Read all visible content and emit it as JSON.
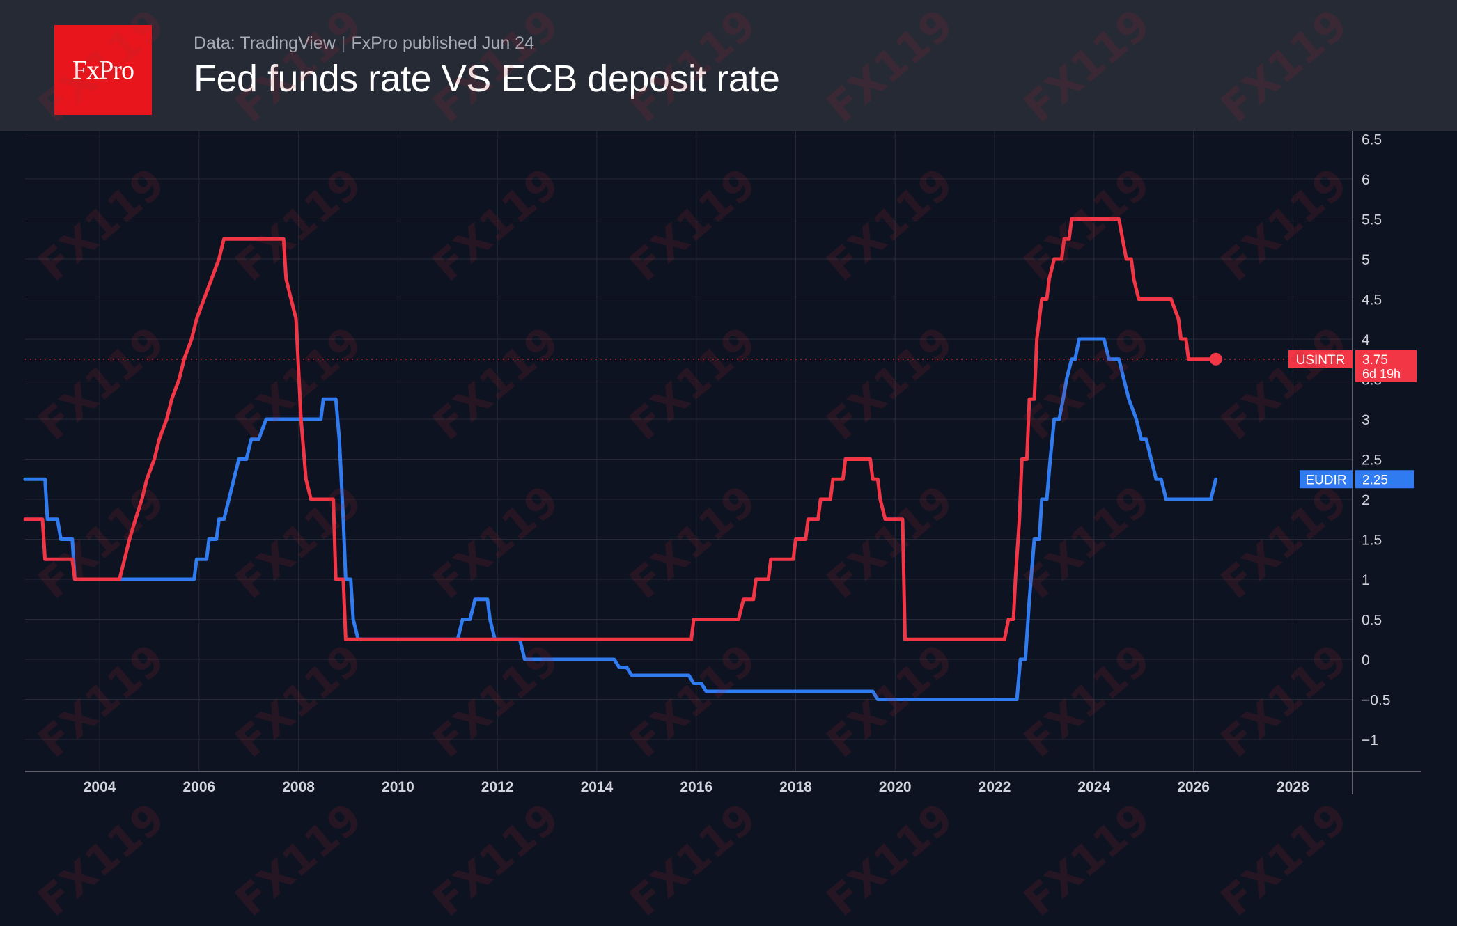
{
  "header": {
    "logo_text": "FxPro",
    "source": "Data: TradingView",
    "published": "FxPro published Jun 24",
    "title": "Fed funds rate VS ECB deposit rate"
  },
  "watermark": "FX119",
  "colors": {
    "background": "#0e1321",
    "header_bg": "#262a35",
    "logo_bg": "#e8161c",
    "fed": "#f23645",
    "ecb": "#2f7bef",
    "grid": "#252a36",
    "axis_text": "#d1d4dc"
  },
  "chart_data": {
    "type": "line",
    "xlim": [
      2002.5,
      2029.2
    ],
    "ylim": [
      -1.4,
      6.6
    ],
    "x_ticks": [
      "2004",
      "2006",
      "2008",
      "2010",
      "2012",
      "2014",
      "2016",
      "2018",
      "2020",
      "2022",
      "2024",
      "2026",
      "2028"
    ],
    "y_ticks": [
      "6.5",
      "6",
      "5.5",
      "5",
      "4.5",
      "4",
      "3.5",
      "3",
      "2.5",
      "2",
      "1.5",
      "1",
      "0.5",
      "0",
      "−0.5",
      "−1"
    ],
    "grid": true,
    "series": [
      {
        "name": "USINTR",
        "color": "#f23645",
        "last_value": "3.75",
        "countdown": "6d 19h",
        "points": [
          [
            2002.5,
            1.75
          ],
          [
            2002.85,
            1.75
          ],
          [
            2002.9,
            1.25
          ],
          [
            2003.45,
            1.25
          ],
          [
            2003.5,
            1.0
          ],
          [
            2004.4,
            1.0
          ],
          [
            2004.5,
            1.25
          ],
          [
            2004.6,
            1.5
          ],
          [
            2004.72,
            1.75
          ],
          [
            2004.85,
            2.0
          ],
          [
            2004.95,
            2.25
          ],
          [
            2005.1,
            2.5
          ],
          [
            2005.2,
            2.75
          ],
          [
            2005.35,
            3.0
          ],
          [
            2005.45,
            3.25
          ],
          [
            2005.6,
            3.5
          ],
          [
            2005.7,
            3.75
          ],
          [
            2005.85,
            4.0
          ],
          [
            2005.95,
            4.25
          ],
          [
            2006.1,
            4.5
          ],
          [
            2006.25,
            4.75
          ],
          [
            2006.4,
            5.0
          ],
          [
            2006.5,
            5.25
          ],
          [
            2007.7,
            5.25
          ],
          [
            2007.75,
            4.75
          ],
          [
            2007.85,
            4.5
          ],
          [
            2007.95,
            4.25
          ],
          [
            2008.05,
            3.0
          ],
          [
            2008.15,
            2.25
          ],
          [
            2008.25,
            2.0
          ],
          [
            2008.7,
            2.0
          ],
          [
            2008.75,
            1.0
          ],
          [
            2008.9,
            1.0
          ],
          [
            2008.95,
            0.25
          ],
          [
            2015.9,
            0.25
          ],
          [
            2015.95,
            0.5
          ],
          [
            2016.85,
            0.5
          ],
          [
            2016.95,
            0.75
          ],
          [
            2017.15,
            0.75
          ],
          [
            2017.2,
            1.0
          ],
          [
            2017.45,
            1.0
          ],
          [
            2017.5,
            1.25
          ],
          [
            2017.95,
            1.25
          ],
          [
            2018.0,
            1.5
          ],
          [
            2018.2,
            1.5
          ],
          [
            2018.25,
            1.75
          ],
          [
            2018.45,
            1.75
          ],
          [
            2018.5,
            2.0
          ],
          [
            2018.7,
            2.0
          ],
          [
            2018.75,
            2.25
          ],
          [
            2018.95,
            2.25
          ],
          [
            2019.0,
            2.5
          ],
          [
            2019.5,
            2.5
          ],
          [
            2019.55,
            2.25
          ],
          [
            2019.65,
            2.25
          ],
          [
            2019.7,
            2.0
          ],
          [
            2019.8,
            1.75
          ],
          [
            2020.15,
            1.75
          ],
          [
            2020.2,
            0.25
          ],
          [
            2022.2,
            0.25
          ],
          [
            2022.28,
            0.5
          ],
          [
            2022.38,
            0.5
          ],
          [
            2022.42,
            1.0
          ],
          [
            2022.5,
            1.75
          ],
          [
            2022.55,
            2.5
          ],
          [
            2022.65,
            2.5
          ],
          [
            2022.7,
            3.25
          ],
          [
            2022.8,
            3.25
          ],
          [
            2022.85,
            4.0
          ],
          [
            2022.95,
            4.5
          ],
          [
            2023.05,
            4.5
          ],
          [
            2023.1,
            4.75
          ],
          [
            2023.2,
            5.0
          ],
          [
            2023.35,
            5.0
          ],
          [
            2023.4,
            5.25
          ],
          [
            2023.5,
            5.25
          ],
          [
            2023.55,
            5.5
          ],
          [
            2024.5,
            5.5
          ],
          [
            2024.65,
            5.0
          ],
          [
            2024.75,
            5.0
          ],
          [
            2024.8,
            4.75
          ],
          [
            2024.9,
            4.5
          ],
          [
            2025.55,
            4.5
          ],
          [
            2025.7,
            4.25
          ],
          [
            2025.75,
            4.0
          ],
          [
            2025.85,
            4.0
          ],
          [
            2025.9,
            3.75
          ],
          [
            2026.45,
            3.75
          ]
        ]
      },
      {
        "name": "EUDIR",
        "color": "#2f7bef",
        "last_value": "2.25",
        "points": [
          [
            2002.5,
            2.25
          ],
          [
            2002.9,
            2.25
          ],
          [
            2002.95,
            1.75
          ],
          [
            2003.15,
            1.75
          ],
          [
            2003.22,
            1.5
          ],
          [
            2003.45,
            1.5
          ],
          [
            2003.5,
            1.0
          ],
          [
            2005.9,
            1.0
          ],
          [
            2005.95,
            1.25
          ],
          [
            2006.15,
            1.25
          ],
          [
            2006.2,
            1.5
          ],
          [
            2006.35,
            1.5
          ],
          [
            2006.4,
            1.75
          ],
          [
            2006.5,
            1.75
          ],
          [
            2006.6,
            2.0
          ],
          [
            2006.7,
            2.25
          ],
          [
            2006.8,
            2.5
          ],
          [
            2006.95,
            2.5
          ],
          [
            2007.05,
            2.75
          ],
          [
            2007.2,
            2.75
          ],
          [
            2007.35,
            3.0
          ],
          [
            2008.45,
            3.0
          ],
          [
            2008.5,
            3.25
          ],
          [
            2008.75,
            3.25
          ],
          [
            2008.82,
            2.75
          ],
          [
            2008.9,
            1.75
          ],
          [
            2008.95,
            1.0
          ],
          [
            2009.05,
            1.0
          ],
          [
            2009.1,
            0.5
          ],
          [
            2009.2,
            0.25
          ],
          [
            2011.2,
            0.25
          ],
          [
            2011.3,
            0.5
          ],
          [
            2011.45,
            0.5
          ],
          [
            2011.55,
            0.75
          ],
          [
            2011.8,
            0.75
          ],
          [
            2011.85,
            0.5
          ],
          [
            2011.95,
            0.25
          ],
          [
            2012.45,
            0.25
          ],
          [
            2012.55,
            0.0
          ],
          [
            2014.35,
            0.0
          ],
          [
            2014.45,
            -0.1
          ],
          [
            2014.6,
            -0.1
          ],
          [
            2014.7,
            -0.2
          ],
          [
            2015.85,
            -0.2
          ],
          [
            2015.95,
            -0.3
          ],
          [
            2016.1,
            -0.3
          ],
          [
            2016.2,
            -0.4
          ],
          [
            2019.55,
            -0.4
          ],
          [
            2019.65,
            -0.5
          ],
          [
            2022.45,
            -0.5
          ],
          [
            2022.52,
            0.0
          ],
          [
            2022.62,
            0.0
          ],
          [
            2022.7,
            0.75
          ],
          [
            2022.8,
            1.5
          ],
          [
            2022.9,
            1.5
          ],
          [
            2022.95,
            2.0
          ],
          [
            2023.05,
            2.0
          ],
          [
            2023.12,
            2.5
          ],
          [
            2023.2,
            3.0
          ],
          [
            2023.3,
            3.0
          ],
          [
            2023.38,
            3.25
          ],
          [
            2023.45,
            3.5
          ],
          [
            2023.55,
            3.75
          ],
          [
            2023.62,
            3.75
          ],
          [
            2023.7,
            4.0
          ],
          [
            2024.2,
            4.0
          ],
          [
            2024.3,
            3.75
          ],
          [
            2024.5,
            3.75
          ],
          [
            2024.6,
            3.5
          ],
          [
            2024.7,
            3.25
          ],
          [
            2024.85,
            3.0
          ],
          [
            2024.95,
            2.75
          ],
          [
            2025.05,
            2.75
          ],
          [
            2025.15,
            2.5
          ],
          [
            2025.25,
            2.25
          ],
          [
            2025.35,
            2.25
          ],
          [
            2025.45,
            2.0
          ],
          [
            2026.35,
            2.0
          ],
          [
            2026.45,
            2.25
          ]
        ]
      }
    ]
  }
}
